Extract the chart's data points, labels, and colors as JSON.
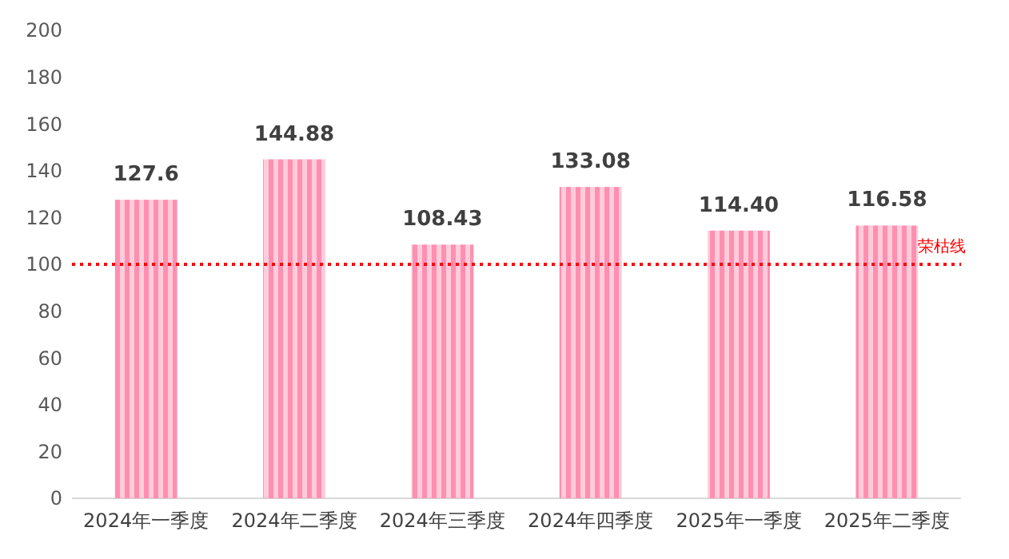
{
  "chart_data": {
    "type": "bar",
    "categories": [
      "2024年一季度",
      "2024年二季度",
      "2024年三季度",
      "2024年四季度",
      "2025年一季度",
      "2025年二季度"
    ],
    "values": [
      127.6,
      144.88,
      108.43,
      133.08,
      114.4,
      116.58
    ],
    "value_labels": [
      "127.6",
      "144.88",
      "108.43",
      "133.08",
      "114.40",
      "116.58"
    ],
    "color": "#ff8fb0",
    "ylim": [
      0,
      200
    ],
    "yticks": [
      0,
      20,
      40,
      60,
      80,
      100,
      120,
      140,
      160,
      180,
      200
    ],
    "ref_lines": [
      {
        "axis": "y",
        "value": 100,
        "label": "荣枯线",
        "color": "#ff0000",
        "line_style": "dotted"
      }
    ]
  }
}
